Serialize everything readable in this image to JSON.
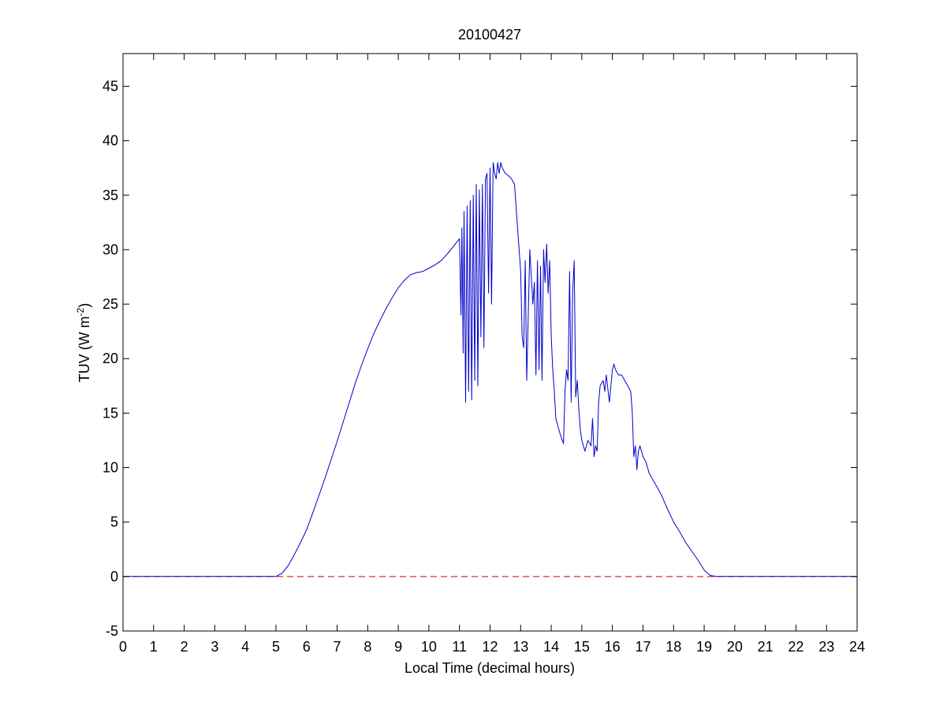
{
  "chart_data": {
    "type": "line",
    "title": "20100427",
    "xlabel": "Local Time (decimal hours)",
    "ylabel": {
      "main": "TUV (W m",
      "superscript": "-2",
      "close": ")"
    },
    "xlim": [
      0,
      24
    ],
    "ylim": [
      -5,
      48
    ],
    "xticks": [
      0,
      1,
      2,
      3,
      4,
      5,
      6,
      7,
      8,
      9,
      10,
      11,
      12,
      13,
      14,
      15,
      16,
      17,
      18,
      19,
      20,
      21,
      22,
      23,
      24
    ],
    "yticks": [
      -5,
      0,
      5,
      10,
      15,
      20,
      25,
      30,
      35,
      40,
      45
    ],
    "grid": false,
    "box": true,
    "reference_line": {
      "y": 0,
      "style": "dashed",
      "color": "#cc0000"
    },
    "series": [
      {
        "color": "#0000cc",
        "x": [
          0,
          5.0,
          5.2,
          5.4,
          5.6,
          5.8,
          6.0,
          6.2,
          6.4,
          6.6,
          6.8,
          7.0,
          7.2,
          7.4,
          7.6,
          7.8,
          8.0,
          8.2,
          8.4,
          8.6,
          8.8,
          9.0,
          9.2,
          9.4,
          9.6,
          9.8,
          10.0,
          10.2,
          10.4,
          10.6,
          10.8,
          11.0,
          11.05,
          11.08,
          11.12,
          11.15,
          11.2,
          11.25,
          11.3,
          11.35,
          11.4,
          11.45,
          11.5,
          11.55,
          11.6,
          11.65,
          11.7,
          11.75,
          11.8,
          11.85,
          11.9,
          11.95,
          12.0,
          12.05,
          12.1,
          12.15,
          12.2,
          12.25,
          12.3,
          12.35,
          12.4,
          12.5,
          12.6,
          12.7,
          12.8,
          12.9,
          13.0,
          13.05,
          13.1,
          13.15,
          13.2,
          13.3,
          13.4,
          13.45,
          13.5,
          13.55,
          13.6,
          13.65,
          13.7,
          13.75,
          13.8,
          13.85,
          13.9,
          13.95,
          14.0,
          14.05,
          14.1,
          14.15,
          14.2,
          14.3,
          14.4,
          14.45,
          14.5,
          14.55,
          14.6,
          14.65,
          14.7,
          14.75,
          14.8,
          14.85,
          14.9,
          14.95,
          15.0,
          15.1,
          15.2,
          15.3,
          15.35,
          15.4,
          15.45,
          15.5,
          15.55,
          15.6,
          15.7,
          15.75,
          15.8,
          15.9,
          16.0,
          16.05,
          16.1,
          16.2,
          16.3,
          16.4,
          16.5,
          16.6,
          16.65,
          16.7,
          16.75,
          16.8,
          16.85,
          16.9,
          17.0,
          17.1,
          17.2,
          17.4,
          17.6,
          17.8,
          18.0,
          18.2,
          18.4,
          18.6,
          18.8,
          19.0,
          19.2,
          19.4,
          19.6,
          20.0,
          24.0
        ],
        "y": [
          0,
          0,
          0.3,
          1.0,
          2.0,
          3.1,
          4.3,
          5.8,
          7.4,
          9.0,
          10.7,
          12.4,
          14.2,
          16.0,
          17.8,
          19.4,
          20.9,
          22.3,
          23.5,
          24.6,
          25.6,
          26.5,
          27.2,
          27.7,
          27.9,
          28.0,
          28.3,
          28.6,
          29.0,
          29.6,
          30.3,
          31.0,
          24.0,
          32.0,
          20.5,
          33.5,
          16.0,
          34.0,
          17.0,
          34.5,
          16.2,
          35.0,
          18.0,
          36.0,
          17.5,
          35.5,
          22.0,
          36.0,
          21.0,
          36.5,
          37.0,
          26.0,
          37.5,
          25.0,
          38.0,
          37.0,
          36.5,
          38.0,
          37.0,
          38.0,
          37.5,
          37.0,
          36.8,
          36.5,
          36.0,
          32.0,
          28.0,
          22.0,
          21.0,
          29.0,
          18.0,
          30.0,
          25.0,
          27.0,
          18.5,
          29.0,
          19.0,
          28.5,
          18.0,
          30.0,
          27.0,
          30.5,
          26.0,
          29.0,
          22.0,
          19.0,
          17.0,
          14.5,
          14.0,
          13.0,
          12.2,
          17.0,
          19.0,
          18.0,
          28.0,
          16.0,
          26.0,
          29.0,
          16.5,
          18.0,
          15.5,
          13.5,
          12.5,
          11.5,
          12.5,
          12.0,
          14.5,
          11.0,
          12.0,
          11.5,
          16.0,
          17.5,
          18.0,
          17.0,
          18.5,
          16.0,
          19.0,
          19.5,
          19.0,
          18.5,
          18.5,
          18.0,
          17.5,
          17.0,
          15.0,
          11.0,
          12.0,
          9.8,
          11.5,
          12.0,
          11.0,
          10.5,
          9.5,
          8.5,
          7.5,
          6.2,
          5.0,
          4.1,
          3.1,
          2.3,
          1.5,
          0.6,
          0.1,
          0,
          0,
          0,
          0
        ]
      }
    ]
  }
}
